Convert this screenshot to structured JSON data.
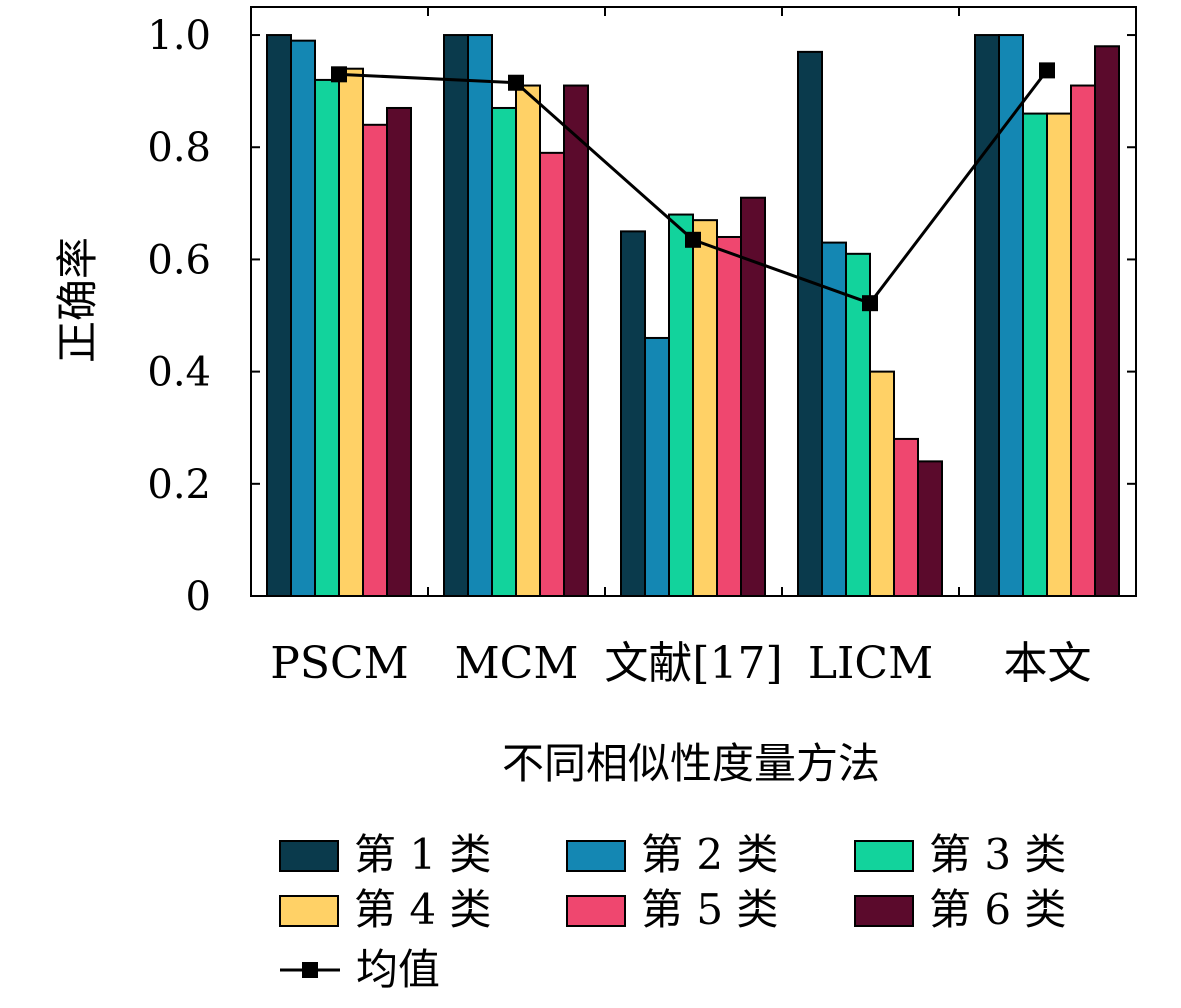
{
  "chart_data": {
    "type": "bar",
    "categories": [
      "PSCM",
      "MCM",
      "文献[17]",
      "LICM",
      "本文"
    ],
    "series": [
      {
        "name": "第 1 类",
        "color": "#0a3a4c",
        "values": [
          1.0,
          1.0,
          0.65,
          0.97,
          1.0
        ]
      },
      {
        "name": "第 2 类",
        "color": "#1487b3",
        "values": [
          0.99,
          1.0,
          0.46,
          0.63,
          1.0
        ]
      },
      {
        "name": "第 3 类",
        "color": "#12d39c",
        "values": [
          0.92,
          0.87,
          0.68,
          0.61,
          0.86
        ]
      },
      {
        "name": "第 4 类",
        "color": "#ffd166",
        "values": [
          0.94,
          0.91,
          0.67,
          0.4,
          0.86
        ]
      },
      {
        "name": "第 5 类",
        "color": "#ef476f",
        "values": [
          0.84,
          0.79,
          0.64,
          0.28,
          0.91
        ]
      },
      {
        "name": "第 6 类",
        "color": "#5b0a2c",
        "values": [
          0.87,
          0.91,
          0.71,
          0.24,
          0.98
        ]
      }
    ],
    "line_series": {
      "name": "均值",
      "color": "#000000",
      "marker": "square",
      "values": [
        0.93,
        0.915,
        0.635,
        0.522,
        0.937
      ]
    },
    "xlabel": "不同相似性度量方法",
    "ylabel": "正确率",
    "ylim": [
      0,
      1.05
    ],
    "yticks": [
      0,
      0.2,
      0.4,
      0.6,
      0.8,
      1.0
    ],
    "ytick_labels": [
      "0",
      "0.2",
      "0.4",
      "0.6",
      "0.8",
      "1.0"
    ],
    "grid": false,
    "legend_position": "bottom"
  }
}
